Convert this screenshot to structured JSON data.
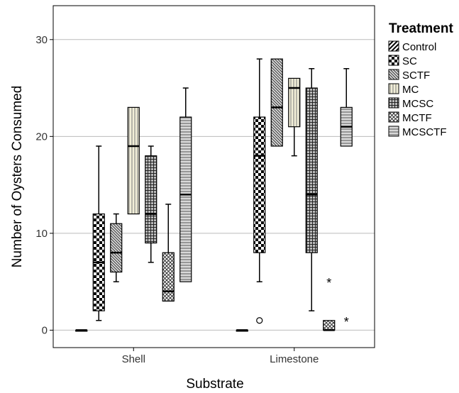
{
  "chart_data": {
    "type": "boxplot",
    "xlabel": "Substrate",
    "ylabel": "Number of Oysters Consumed",
    "ylim": [
      -1.8,
      33.5
    ],
    "yticks": [
      0,
      10,
      20,
      30
    ],
    "grid": true,
    "legend": {
      "title": "Treatment",
      "position": "right"
    },
    "categories": [
      "Shell",
      "Limestone"
    ],
    "series": [
      {
        "name": "Control",
        "pattern": "diagonal",
        "boxes": [
          {
            "min": 0,
            "q1": 0,
            "median": 0,
            "q3": 0,
            "max": 0
          },
          {
            "min": 0,
            "q1": 0,
            "median": 0,
            "q3": 0,
            "max": 0
          }
        ]
      },
      {
        "name": "SC",
        "pattern": "checker",
        "boxes": [
          {
            "min": 1,
            "q1": 2,
            "median": 7,
            "q3": 12,
            "max": 19
          },
          {
            "min": 5,
            "q1": 8,
            "median": 18,
            "q3": 22,
            "max": 28,
            "outliers": [
              1
            ]
          }
        ]
      },
      {
        "name": "SCTF",
        "pattern": "diagonal-dense",
        "boxes": [
          {
            "min": 5,
            "q1": 6,
            "median": 8,
            "q3": 11,
            "max": 12
          },
          {
            "min": 19,
            "q1": 19,
            "median": 23,
            "q3": 28,
            "max": 28
          }
        ]
      },
      {
        "name": "MC",
        "pattern": "vertical",
        "boxes": [
          {
            "min": 12,
            "q1": 12,
            "median": 19,
            "q3": 23,
            "max": 23
          },
          {
            "min": 18,
            "q1": 21,
            "median": 25,
            "q3": 26,
            "max": 26
          }
        ]
      },
      {
        "name": "MCSC",
        "pattern": "grid",
        "boxes": [
          {
            "min": 7,
            "q1": 9,
            "median": 12,
            "q3": 18,
            "max": 19
          },
          {
            "min": 2,
            "q1": 8,
            "median": 14,
            "q3": 25,
            "max": 27
          }
        ]
      },
      {
        "name": "MCTF",
        "pattern": "crosshatch",
        "boxes": [
          {
            "min": 3,
            "q1": 3,
            "median": 4,
            "q3": 8,
            "max": 13
          },
          {
            "min": 0,
            "q1": 0,
            "median": 0,
            "q3": 1,
            "max": 1,
            "extremes": [
              5
            ]
          }
        ]
      },
      {
        "name": "MCSCTF",
        "pattern": "horizontal",
        "boxes": [
          {
            "min": 5,
            "q1": 5,
            "median": 14,
            "q3": 22,
            "max": 25
          },
          {
            "min": 19,
            "q1": 19,
            "median": 21,
            "q3": 23,
            "max": 27,
            "extremes": [
              1
            ]
          }
        ]
      }
    ]
  }
}
